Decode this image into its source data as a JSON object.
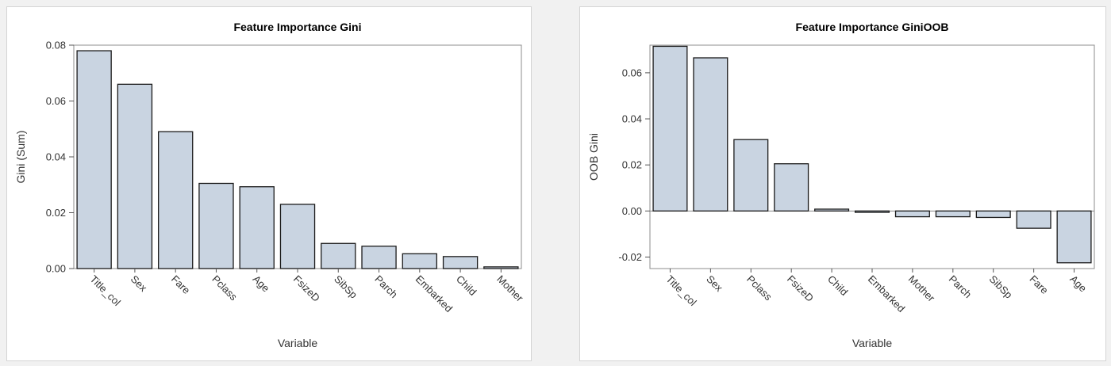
{
  "bar_fill": "#c9d4e1",
  "bar_stroke": "#1a1a1a",
  "chart_data": [
    {
      "type": "bar",
      "title": "Feature Importance Gini",
      "xlabel": "Variable",
      "ylabel": "Gini (Sum)",
      "ylim": [
        0,
        0.08
      ],
      "yticks": [
        0,
        0.02,
        0.04,
        0.06,
        0.08
      ],
      "ytick_labels": [
        "0.00",
        "0.02",
        "0.04",
        "0.06",
        "0.08"
      ],
      "categories": [
        "Title_col",
        "Sex",
        "Fare",
        "Pclass",
        "Age",
        "FsizeD",
        "SibSp",
        "Parch",
        "Embarked",
        "Child",
        "Mother"
      ],
      "values": [
        0.078,
        0.066,
        0.049,
        0.0305,
        0.0293,
        0.023,
        0.009,
        0.008,
        0.0053,
        0.0043,
        0.0006
      ]
    },
    {
      "type": "bar",
      "title": "Feature Importance GiniOOB",
      "xlabel": "Variable",
      "ylabel": "OOB Gini",
      "ylim": [
        -0.025,
        0.072
      ],
      "yticks": [
        -0.02,
        0,
        0.02,
        0.04,
        0.06
      ],
      "ytick_labels": [
        "-0.02",
        "0.00",
        "0.02",
        "0.04",
        "0.06"
      ],
      "categories": [
        "Title_col",
        "Sex",
        "Pclass",
        "FsizeD",
        "Child",
        "Embarked",
        "Mother",
        "Parch",
        "SibSp",
        "Fare",
        "Age"
      ],
      "values": [
        0.0715,
        0.0665,
        0.031,
        0.0205,
        0.0008,
        -0.0006,
        -0.0025,
        -0.0025,
        -0.0028,
        -0.0075,
        -0.0225
      ]
    }
  ]
}
